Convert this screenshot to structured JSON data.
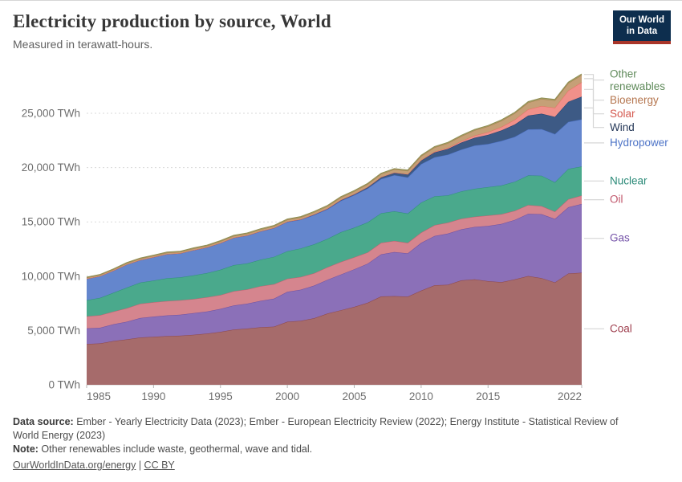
{
  "header": {
    "title": "Electricity production by source, World",
    "subtitle": "Measured in terawatt-hours."
  },
  "logo": {
    "line1": "Our World",
    "line2": "in Data"
  },
  "chart_data": {
    "type": "area",
    "stacked": true,
    "title": "Electricity production by source, World",
    "xlabel": "",
    "ylabel": "TWh",
    "x_start": 1985,
    "x_end": 2022,
    "x_ticks": [
      1985,
      1990,
      1995,
      2000,
      2005,
      2010,
      2015,
      2022
    ],
    "y_ticks": [
      0,
      5000,
      10000,
      15000,
      20000,
      25000
    ],
    "y_tick_suffix": " TWh",
    "ylim": [
      0,
      28700
    ],
    "grid": "dashed",
    "legend_position": "right",
    "series": [
      {
        "name": "Coal",
        "fill": "#a66b6b",
        "line": "#8e4646",
        "label_color": "#9e3e4d",
        "values": [
          3748,
          3811,
          4034,
          4179,
          4357,
          4425,
          4483,
          4521,
          4606,
          4721,
          4874,
          5084,
          5179,
          5297,
          5357,
          5809,
          5891,
          6128,
          6557,
          6863,
          7172,
          7552,
          8134,
          8165,
          8118,
          8666,
          9163,
          9207,
          9613,
          9707,
          9538,
          9451,
          9705,
          10015,
          9824,
          9421,
          10244,
          10317
        ]
      },
      {
        "name": "Gas",
        "fill": "#8b70b8",
        "line": "#6d4fa1",
        "label_color": "#7453a8",
        "values": [
          1441,
          1441,
          1540,
          1628,
          1789,
          1853,
          1906,
          1933,
          1995,
          2021,
          2112,
          2225,
          2288,
          2433,
          2575,
          2752,
          2864,
          3008,
          3120,
          3289,
          3463,
          3603,
          3878,
          4054,
          3982,
          4406,
          4541,
          4714,
          4700,
          4827,
          5093,
          5357,
          5478,
          5733,
          5887,
          5852,
          6103,
          6336
        ]
      },
      {
        "name": "Oil",
        "fill": "#d5858e",
        "line": "#c06070",
        "label_color": "#c0566b",
        "values": [
          1110,
          1157,
          1165,
          1252,
          1317,
          1322,
          1324,
          1327,
          1296,
          1318,
          1285,
          1305,
          1319,
          1356,
          1328,
          1199,
          1169,
          1138,
          1152,
          1161,
          1105,
          1034,
          1058,
          1028,
          972,
          944,
          994,
          1014,
          972,
          943,
          956,
          900,
          841,
          802,
          747,
          676,
          737,
          772
        ]
      },
      {
        "name": "Nuclear",
        "fill": "#4aa98c",
        "line": "#2f9178",
        "label_color": "#2b8a78",
        "values": [
          1488,
          1596,
          1734,
          1890,
          1944,
          2000,
          2096,
          2111,
          2185,
          2225,
          2319,
          2405,
          2390,
          2431,
          2525,
          2540,
          2637,
          2661,
          2608,
          2738,
          2728,
          2767,
          2719,
          2731,
          2696,
          2768,
          2653,
          2503,
          2526,
          2573,
          2612,
          2644,
          2674,
          2724,
          2796,
          2700,
          2800,
          2679
        ]
      },
      {
        "name": "Hydropower",
        "fill": "#6486cd",
        "line": "#4a6fc4",
        "label_color": "#4e74c7",
        "values": [
          1979,
          2006,
          2043,
          2131,
          2087,
          2159,
          2221,
          2215,
          2324,
          2367,
          2465,
          2523,
          2567,
          2607,
          2637,
          2697,
          2638,
          2703,
          2730,
          2884,
          2994,
          3121,
          3162,
          3330,
          3331,
          3532,
          3603,
          3756,
          3844,
          3983,
          3978,
          4105,
          4133,
          4250,
          4292,
          4433,
          4327,
          4334
        ]
      },
      {
        "name": "Wind",
        "fill": "#3d5a85",
        "line": "#24406e",
        "label_color": "#253858",
        "values": [
          0,
          0,
          1,
          2,
          3,
          4,
          4,
          5,
          6,
          7,
          8,
          9,
          12,
          16,
          21,
          31,
          38,
          52,
          63,
          85,
          104,
          133,
          171,
          221,
          276,
          342,
          437,
          523,
          646,
          712,
          831,
          959,
          1134,
          1263,
          1420,
          1586,
          1848,
          2098
        ]
      },
      {
        "name": "Solar",
        "fill": "#f0908a",
        "line": "#e3705f",
        "label_color": "#d4584e",
        "values": [
          0,
          0,
          0,
          0,
          0,
          0,
          0,
          0,
          1,
          1,
          1,
          1,
          1,
          1,
          1,
          1,
          1,
          2,
          2,
          3,
          4,
          5,
          7,
          12,
          20,
          32,
          63,
          97,
          132,
          197,
          256,
          328,
          444,
          574,
          703,
          846,
          1033,
          1316
        ]
      },
      {
        "name": "Bioenergy",
        "fill": "#c5a077",
        "line": "#a97c4f",
        "label_color": "#b5764f",
        "values": [
          101,
          104,
          108,
          112,
          116,
          120,
          125,
          130,
          135,
          140,
          145,
          150,
          155,
          160,
          165,
          170,
          183,
          196,
          210,
          224,
          239,
          254,
          270,
          287,
          305,
          370,
          400,
          430,
          460,
          490,
          527,
          560,
          590,
          620,
          650,
          671,
          672,
          672
        ]
      },
      {
        "name": "Other renewables",
        "fill": "#a6a46a",
        "line": "#8f8d52",
        "label_color": "#5f8a5a",
        "values": [
          47,
          49,
          51,
          53,
          55,
          57,
          59,
          61,
          62,
          63,
          64,
          65,
          66,
          67,
          68,
          69,
          70,
          71,
          72,
          73,
          74,
          75,
          76,
          77,
          78,
          79,
          80,
          81,
          82,
          83,
          84,
          86,
          88,
          90,
          92,
          93,
          95,
          97
        ]
      }
    ]
  },
  "footer": {
    "data_source_label": "Data source:",
    "data_source_text": " Ember - Yearly Electricity Data (2023); Ember - European Electricity Review (2022); Energy Institute - Statistical Review of World Energy (2023)",
    "note_label": "Note:",
    "note_text": " Other renewables include waste, geothermal, wave and tidal.",
    "link_energy": "OurWorldInData.org/energy",
    "separator": "|",
    "link_license": "CC BY"
  }
}
